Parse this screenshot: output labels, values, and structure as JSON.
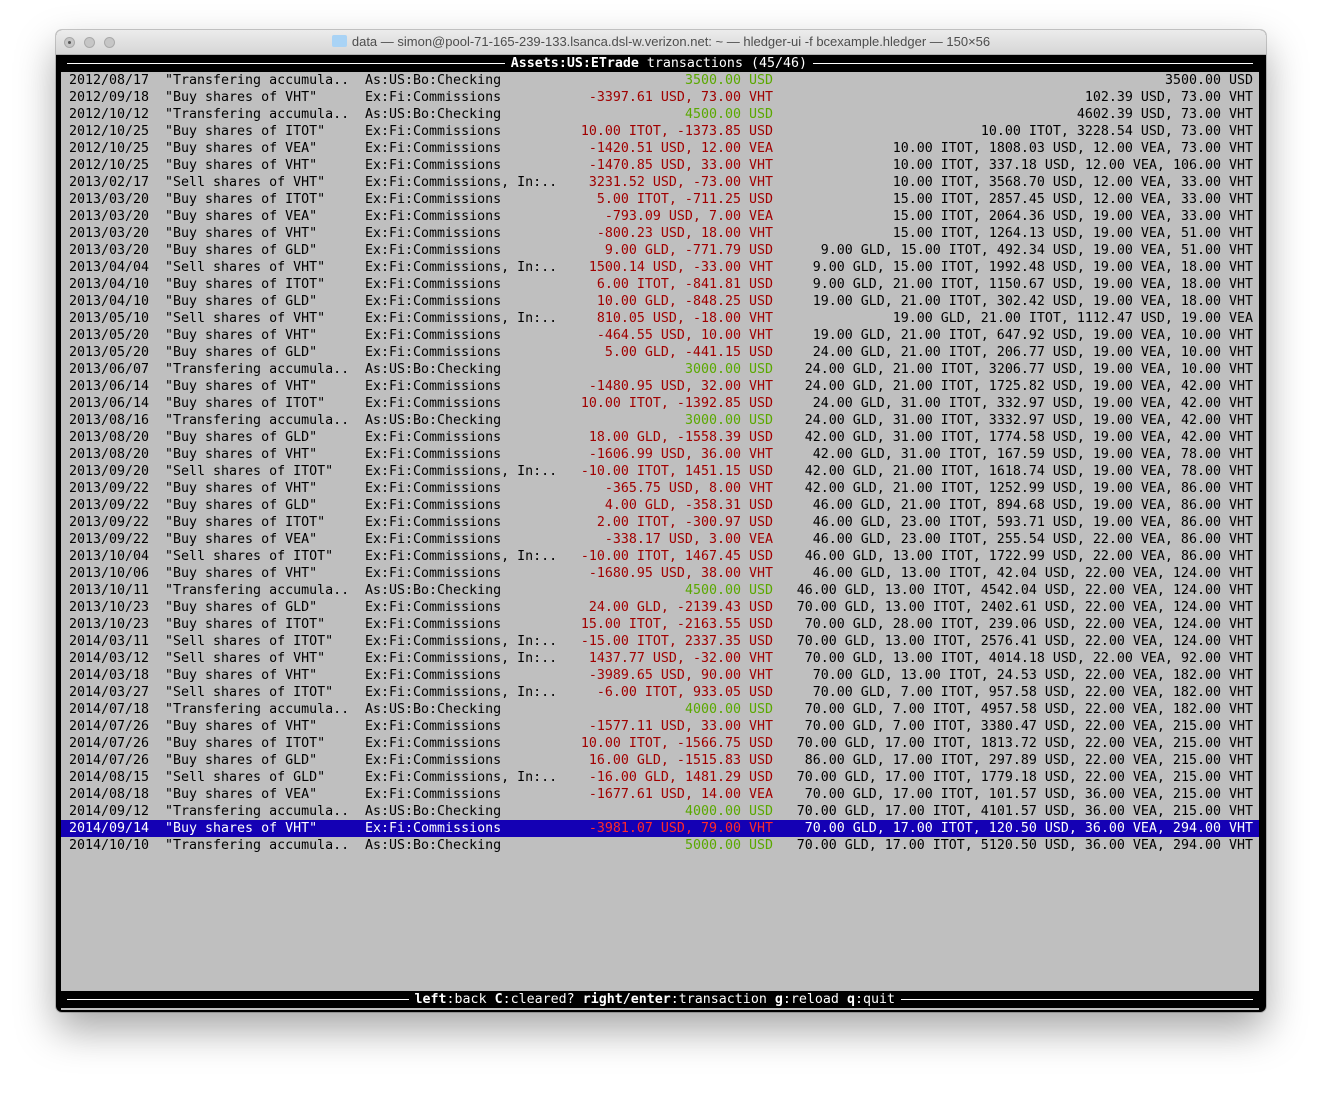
{
  "window": {
    "title": "data — simon@pool-71-165-239-133.lsanca.dsl-w.verizon.net: ~ — hledger-ui -f bcexample.hledger — 150×56"
  },
  "header": {
    "account": "Assets:US:ETrade",
    "label": " transactions (45/46)"
  },
  "selected_index": 44,
  "colors": {
    "background": "#bfbfbf",
    "selection": "#1400b4",
    "negative": "#a00000",
    "positive": "#5aa800"
  },
  "rows": [
    {
      "date": "2012/08/17",
      "desc": "\"Transfering accumula..",
      "account": "As:US:Bo:Checking",
      "amount": "3500.00 USD",
      "sign": "pos",
      "balance": "3500.00 USD"
    },
    {
      "date": "2012/09/18",
      "desc": "\"Buy shares of VHT\"",
      "account": "Ex:Fi:Commissions",
      "amount": "-3397.61 USD, 73.00 VHT",
      "sign": "neg",
      "balance": "102.39 USD, 73.00 VHT"
    },
    {
      "date": "2012/10/12",
      "desc": "\"Transfering accumula..",
      "account": "As:US:Bo:Checking",
      "amount": "4500.00 USD",
      "sign": "pos",
      "balance": "4602.39 USD, 73.00 VHT"
    },
    {
      "date": "2012/10/25",
      "desc": "\"Buy shares of ITOT\"",
      "account": "Ex:Fi:Commissions",
      "amount": "10.00 ITOT, -1373.85 USD",
      "sign": "neg",
      "balance": "10.00 ITOT, 3228.54 USD, 73.00 VHT"
    },
    {
      "date": "2012/10/25",
      "desc": "\"Buy shares of VEA\"",
      "account": "Ex:Fi:Commissions",
      "amount": "-1420.51 USD, 12.00 VEA",
      "sign": "neg",
      "balance": "10.00 ITOT, 1808.03 USD, 12.00 VEA, 73.00 VHT"
    },
    {
      "date": "2012/10/25",
      "desc": "\"Buy shares of VHT\"",
      "account": "Ex:Fi:Commissions",
      "amount": "-1470.85 USD, 33.00 VHT",
      "sign": "neg",
      "balance": "10.00 ITOT, 337.18 USD, 12.00 VEA, 106.00 VHT"
    },
    {
      "date": "2013/02/17",
      "desc": "\"Sell shares of VHT\"",
      "account": "Ex:Fi:Commissions, In:..",
      "amount": "3231.52 USD, -73.00 VHT",
      "sign": "neg",
      "balance": "10.00 ITOT, 3568.70 USD, 12.00 VEA, 33.00 VHT"
    },
    {
      "date": "2013/03/20",
      "desc": "\"Buy shares of ITOT\"",
      "account": "Ex:Fi:Commissions",
      "amount": "5.00 ITOT, -711.25 USD",
      "sign": "neg",
      "balance": "15.00 ITOT, 2857.45 USD, 12.00 VEA, 33.00 VHT"
    },
    {
      "date": "2013/03/20",
      "desc": "\"Buy shares of VEA\"",
      "account": "Ex:Fi:Commissions",
      "amount": "-793.09 USD, 7.00 VEA",
      "sign": "neg",
      "balance": "15.00 ITOT, 2064.36 USD, 19.00 VEA, 33.00 VHT"
    },
    {
      "date": "2013/03/20",
      "desc": "\"Buy shares of VHT\"",
      "account": "Ex:Fi:Commissions",
      "amount": "-800.23 USD, 18.00 VHT",
      "sign": "neg",
      "balance": "15.00 ITOT, 1264.13 USD, 19.00 VEA, 51.00 VHT"
    },
    {
      "date": "2013/03/20",
      "desc": "\"Buy shares of GLD\"",
      "account": "Ex:Fi:Commissions",
      "amount": "9.00 GLD, -771.79 USD",
      "sign": "neg",
      "balance": "9.00 GLD, 15.00 ITOT, 492.34 USD, 19.00 VEA, 51.00 VHT"
    },
    {
      "date": "2013/04/04",
      "desc": "\"Sell shares of VHT\"",
      "account": "Ex:Fi:Commissions, In:..",
      "amount": "1500.14 USD, -33.00 VHT",
      "sign": "neg",
      "balance": "9.00 GLD, 15.00 ITOT, 1992.48 USD, 19.00 VEA, 18.00 VHT"
    },
    {
      "date": "2013/04/10",
      "desc": "\"Buy shares of ITOT\"",
      "account": "Ex:Fi:Commissions",
      "amount": "6.00 ITOT, -841.81 USD",
      "sign": "neg",
      "balance": "9.00 GLD, 21.00 ITOT, 1150.67 USD, 19.00 VEA, 18.00 VHT"
    },
    {
      "date": "2013/04/10",
      "desc": "\"Buy shares of GLD\"",
      "account": "Ex:Fi:Commissions",
      "amount": "10.00 GLD, -848.25 USD",
      "sign": "neg",
      "balance": "19.00 GLD, 21.00 ITOT, 302.42 USD, 19.00 VEA, 18.00 VHT"
    },
    {
      "date": "2013/05/10",
      "desc": "\"Sell shares of VHT\"",
      "account": "Ex:Fi:Commissions, In:..",
      "amount": "810.05 USD, -18.00 VHT",
      "sign": "neg",
      "balance": "19.00 GLD, 21.00 ITOT, 1112.47 USD, 19.00 VEA"
    },
    {
      "date": "2013/05/20",
      "desc": "\"Buy shares of VHT\"",
      "account": "Ex:Fi:Commissions",
      "amount": "-464.55 USD, 10.00 VHT",
      "sign": "neg",
      "balance": "19.00 GLD, 21.00 ITOT, 647.92 USD, 19.00 VEA, 10.00 VHT"
    },
    {
      "date": "2013/05/20",
      "desc": "\"Buy shares of GLD\"",
      "account": "Ex:Fi:Commissions",
      "amount": "5.00 GLD, -441.15 USD",
      "sign": "neg",
      "balance": "24.00 GLD, 21.00 ITOT, 206.77 USD, 19.00 VEA, 10.00 VHT"
    },
    {
      "date": "2013/06/07",
      "desc": "\"Transfering accumula..",
      "account": "As:US:Bo:Checking",
      "amount": "3000.00 USD",
      "sign": "pos",
      "balance": "24.00 GLD, 21.00 ITOT, 3206.77 USD, 19.00 VEA, 10.00 VHT"
    },
    {
      "date": "2013/06/14",
      "desc": "\"Buy shares of VHT\"",
      "account": "Ex:Fi:Commissions",
      "amount": "-1480.95 USD, 32.00 VHT",
      "sign": "neg",
      "balance": "24.00 GLD, 21.00 ITOT, 1725.82 USD, 19.00 VEA, 42.00 VHT"
    },
    {
      "date": "2013/06/14",
      "desc": "\"Buy shares of ITOT\"",
      "account": "Ex:Fi:Commissions",
      "amount": "10.00 ITOT, -1392.85 USD",
      "sign": "neg",
      "balance": "24.00 GLD, 31.00 ITOT, 332.97 USD, 19.00 VEA, 42.00 VHT"
    },
    {
      "date": "2013/08/16",
      "desc": "\"Transfering accumula..",
      "account": "As:US:Bo:Checking",
      "amount": "3000.00 USD",
      "sign": "pos",
      "balance": "24.00 GLD, 31.00 ITOT, 3332.97 USD, 19.00 VEA, 42.00 VHT"
    },
    {
      "date": "2013/08/20",
      "desc": "\"Buy shares of GLD\"",
      "account": "Ex:Fi:Commissions",
      "amount": "18.00 GLD, -1558.39 USD",
      "sign": "neg",
      "balance": "42.00 GLD, 31.00 ITOT, 1774.58 USD, 19.00 VEA, 42.00 VHT"
    },
    {
      "date": "2013/08/20",
      "desc": "\"Buy shares of VHT\"",
      "account": "Ex:Fi:Commissions",
      "amount": "-1606.99 USD, 36.00 VHT",
      "sign": "neg",
      "balance": "42.00 GLD, 31.00 ITOT, 167.59 USD, 19.00 VEA, 78.00 VHT"
    },
    {
      "date": "2013/09/20",
      "desc": "\"Sell shares of ITOT\"",
      "account": "Ex:Fi:Commissions, In:..",
      "amount": "-10.00 ITOT, 1451.15 USD",
      "sign": "neg",
      "balance": "42.00 GLD, 21.00 ITOT, 1618.74 USD, 19.00 VEA, 78.00 VHT"
    },
    {
      "date": "2013/09/22",
      "desc": "\"Buy shares of VHT\"",
      "account": "Ex:Fi:Commissions",
      "amount": "-365.75 USD, 8.00 VHT",
      "sign": "neg",
      "balance": "42.00 GLD, 21.00 ITOT, 1252.99 USD, 19.00 VEA, 86.00 VHT"
    },
    {
      "date": "2013/09/22",
      "desc": "\"Buy shares of GLD\"",
      "account": "Ex:Fi:Commissions",
      "amount": "4.00 GLD, -358.31 USD",
      "sign": "neg",
      "balance": "46.00 GLD, 21.00 ITOT, 894.68 USD, 19.00 VEA, 86.00 VHT"
    },
    {
      "date": "2013/09/22",
      "desc": "\"Buy shares of ITOT\"",
      "account": "Ex:Fi:Commissions",
      "amount": "2.00 ITOT, -300.97 USD",
      "sign": "neg",
      "balance": "46.00 GLD, 23.00 ITOT, 593.71 USD, 19.00 VEA, 86.00 VHT"
    },
    {
      "date": "2013/09/22",
      "desc": "\"Buy shares of VEA\"",
      "account": "Ex:Fi:Commissions",
      "amount": "-338.17 USD, 3.00 VEA",
      "sign": "neg",
      "balance": "46.00 GLD, 23.00 ITOT, 255.54 USD, 22.00 VEA, 86.00 VHT"
    },
    {
      "date": "2013/10/04",
      "desc": "\"Sell shares of ITOT\"",
      "account": "Ex:Fi:Commissions, In:..",
      "amount": "-10.00 ITOT, 1467.45 USD",
      "sign": "neg",
      "balance": "46.00 GLD, 13.00 ITOT, 1722.99 USD, 22.00 VEA, 86.00 VHT"
    },
    {
      "date": "2013/10/06",
      "desc": "\"Buy shares of VHT\"",
      "account": "Ex:Fi:Commissions",
      "amount": "-1680.95 USD, 38.00 VHT",
      "sign": "neg",
      "balance": "46.00 GLD, 13.00 ITOT, 42.04 USD, 22.00 VEA, 124.00 VHT"
    },
    {
      "date": "2013/10/11",
      "desc": "\"Transfering accumula..",
      "account": "As:US:Bo:Checking",
      "amount": "4500.00 USD",
      "sign": "pos",
      "balance": "46.00 GLD, 13.00 ITOT, 4542.04 USD, 22.00 VEA, 124.00 VHT"
    },
    {
      "date": "2013/10/23",
      "desc": "\"Buy shares of GLD\"",
      "account": "Ex:Fi:Commissions",
      "amount": "24.00 GLD, -2139.43 USD",
      "sign": "neg",
      "balance": "70.00 GLD, 13.00 ITOT, 2402.61 USD, 22.00 VEA, 124.00 VHT"
    },
    {
      "date": "2013/10/23",
      "desc": "\"Buy shares of ITOT\"",
      "account": "Ex:Fi:Commissions",
      "amount": "15.00 ITOT, -2163.55 USD",
      "sign": "neg",
      "balance": "70.00 GLD, 28.00 ITOT, 239.06 USD, 22.00 VEA, 124.00 VHT"
    },
    {
      "date": "2014/03/11",
      "desc": "\"Sell shares of ITOT\"",
      "account": "Ex:Fi:Commissions, In:..",
      "amount": "-15.00 ITOT, 2337.35 USD",
      "sign": "neg",
      "balance": "70.00 GLD, 13.00 ITOT, 2576.41 USD, 22.00 VEA, 124.00 VHT"
    },
    {
      "date": "2014/03/12",
      "desc": "\"Sell shares of VHT\"",
      "account": "Ex:Fi:Commissions, In:..",
      "amount": "1437.77 USD, -32.00 VHT",
      "sign": "neg",
      "balance": "70.00 GLD, 13.00 ITOT, 4014.18 USD, 22.00 VEA, 92.00 VHT"
    },
    {
      "date": "2014/03/18",
      "desc": "\"Buy shares of VHT\"",
      "account": "Ex:Fi:Commissions",
      "amount": "-3989.65 USD, 90.00 VHT",
      "sign": "neg",
      "balance": "70.00 GLD, 13.00 ITOT, 24.53 USD, 22.00 VEA, 182.00 VHT"
    },
    {
      "date": "2014/03/27",
      "desc": "\"Sell shares of ITOT\"",
      "account": "Ex:Fi:Commissions, In:..",
      "amount": "-6.00 ITOT, 933.05 USD",
      "sign": "neg",
      "balance": "70.00 GLD, 7.00 ITOT, 957.58 USD, 22.00 VEA, 182.00 VHT"
    },
    {
      "date": "2014/07/18",
      "desc": "\"Transfering accumula..",
      "account": "As:US:Bo:Checking",
      "amount": "4000.00 USD",
      "sign": "pos",
      "balance": "70.00 GLD, 7.00 ITOT, 4957.58 USD, 22.00 VEA, 182.00 VHT"
    },
    {
      "date": "2014/07/26",
      "desc": "\"Buy shares of VHT\"",
      "account": "Ex:Fi:Commissions",
      "amount": "-1577.11 USD, 33.00 VHT",
      "sign": "neg",
      "balance": "70.00 GLD, 7.00 ITOT, 3380.47 USD, 22.00 VEA, 215.00 VHT"
    },
    {
      "date": "2014/07/26",
      "desc": "\"Buy shares of ITOT\"",
      "account": "Ex:Fi:Commissions",
      "amount": "10.00 ITOT, -1566.75 USD",
      "sign": "neg",
      "balance": "70.00 GLD, 17.00 ITOT, 1813.72 USD, 22.00 VEA, 215.00 VHT"
    },
    {
      "date": "2014/07/26",
      "desc": "\"Buy shares of GLD\"",
      "account": "Ex:Fi:Commissions",
      "amount": "16.00 GLD, -1515.83 USD",
      "sign": "neg",
      "balance": "86.00 GLD, 17.00 ITOT, 297.89 USD, 22.00 VEA, 215.00 VHT"
    },
    {
      "date": "2014/08/15",
      "desc": "\"Sell shares of GLD\"",
      "account": "Ex:Fi:Commissions, In:..",
      "amount": "-16.00 GLD, 1481.29 USD",
      "sign": "neg",
      "balance": "70.00 GLD, 17.00 ITOT, 1779.18 USD, 22.00 VEA, 215.00 VHT"
    },
    {
      "date": "2014/08/18",
      "desc": "\"Buy shares of VEA\"",
      "account": "Ex:Fi:Commissions",
      "amount": "-1677.61 USD, 14.00 VEA",
      "sign": "neg",
      "balance": "70.00 GLD, 17.00 ITOT, 101.57 USD, 36.00 VEA, 215.00 VHT"
    },
    {
      "date": "2014/09/12",
      "desc": "\"Transfering accumula..",
      "account": "As:US:Bo:Checking",
      "amount": "4000.00 USD",
      "sign": "pos",
      "balance": "70.00 GLD, 17.00 ITOT, 4101.57 USD, 36.00 VEA, 215.00 VHT"
    },
    {
      "date": "2014/09/14",
      "desc": "\"Buy shares of VHT\"",
      "account": "Ex:Fi:Commissions",
      "amount": "-3981.07 USD, 79.00 VHT",
      "sign": "neg",
      "balance": "70.00 GLD, 17.00 ITOT, 120.50 USD, 36.00 VEA, 294.00 VHT"
    },
    {
      "date": "2014/10/10",
      "desc": "\"Transfering accumula..",
      "account": "As:US:Bo:Checking",
      "amount": "5000.00 USD",
      "sign": "pos",
      "balance": "70.00 GLD, 17.00 ITOT, 5120.50 USD, 36.00 VEA, 294.00 VHT"
    }
  ],
  "footer": {
    "keys": [
      {
        "key": "left",
        "action": "back"
      },
      {
        "key": "C",
        "action": "cleared?"
      },
      {
        "key": "right/enter",
        "action": "transaction"
      },
      {
        "key": "g",
        "action": "reload"
      },
      {
        "key": "q",
        "action": "quit"
      }
    ]
  }
}
